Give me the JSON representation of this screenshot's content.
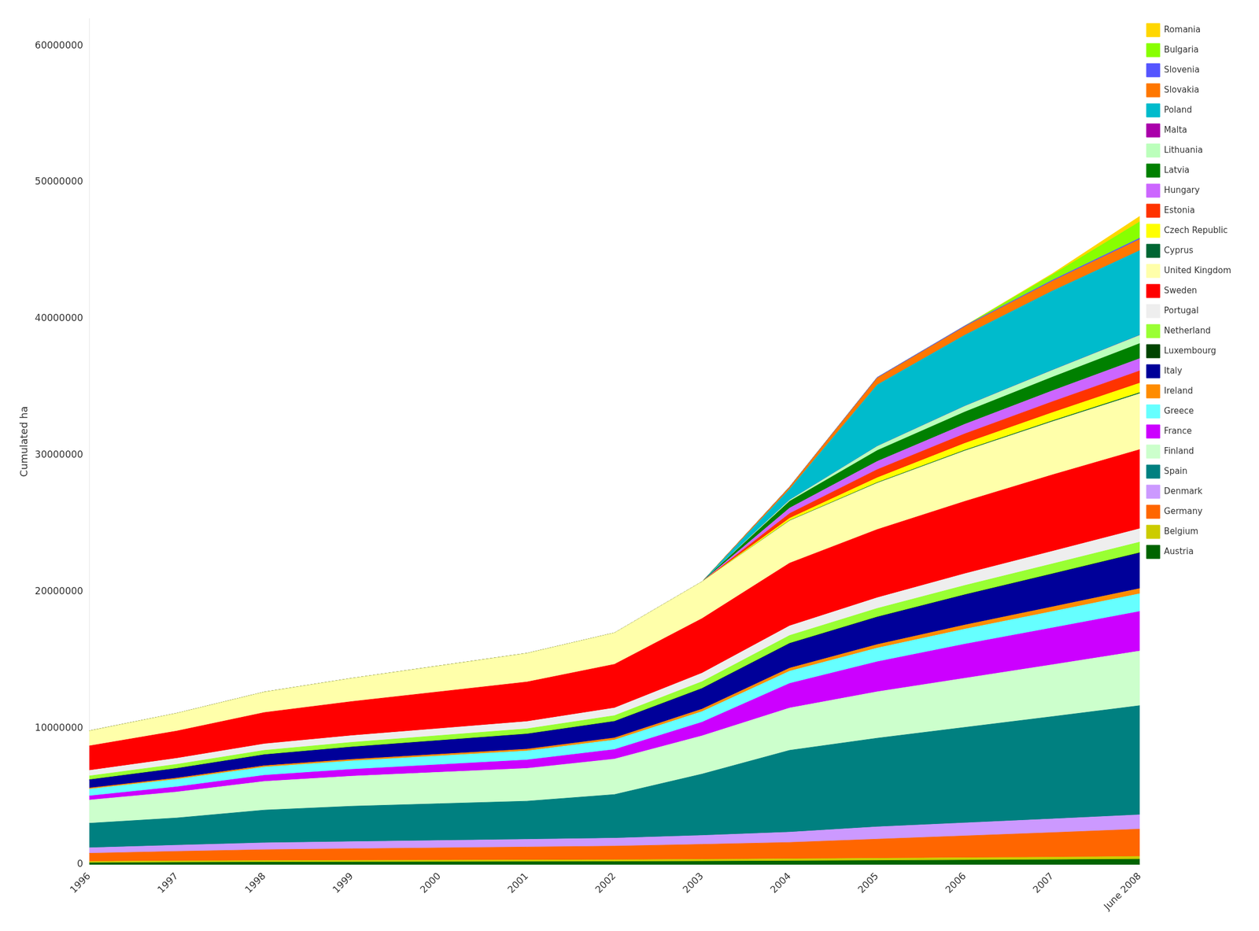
{
  "chart_data": {
    "type": "area",
    "stacked": true,
    "grid": false,
    "legend": "right",
    "ylabel": "Cumulated ha",
    "categories": [
      "1996",
      "1997",
      "1998",
      "1999",
      "2000",
      "2001",
      "2002",
      "2003",
      "2004",
      "2005",
      "2006",
      "2007",
      "June 2008"
    ],
    "ylim": [
      0,
      62000000
    ],
    "yticks": [
      0,
      10000000,
      20000000,
      30000000,
      40000000,
      50000000,
      60000000
    ],
    "series": [
      {
        "name": "Austria",
        "color": "#006400",
        "values": [
          130000,
          160000,
          180000,
          190000,
          200000,
          210000,
          220000,
          240000,
          270000,
          300000,
          330000,
          360000,
          400000
        ]
      },
      {
        "name": "Belgium",
        "color": "#CCCC00",
        "values": [
          100000,
          110000,
          115000,
          120000,
          125000,
          130000,
          135000,
          145000,
          155000,
          165000,
          175000,
          185000,
          200000
        ]
      },
      {
        "name": "Germany",
        "color": "#FF6600",
        "values": [
          600000,
          700000,
          800000,
          850000,
          900000,
          950000,
          1000000,
          1100000,
          1200000,
          1400000,
          1600000,
          1800000,
          2000000
        ]
      },
      {
        "name": "Denmark",
        "color": "#CC99FF",
        "values": [
          400000,
          450000,
          500000,
          520000,
          540000,
          560000,
          580000,
          650000,
          750000,
          900000,
          950000,
          1000000,
          1050000
        ]
      },
      {
        "name": "Spain",
        "color": "#008080",
        "values": [
          1800000,
          2000000,
          2400000,
          2600000,
          2700000,
          2800000,
          3200000,
          4500000,
          6000000,
          6500000,
          7000000,
          7500000,
          8000000
        ]
      },
      {
        "name": "Finland",
        "color": "#CCFFCC",
        "values": [
          1700000,
          1900000,
          2100000,
          2200000,
          2300000,
          2400000,
          2600000,
          2800000,
          3100000,
          3400000,
          3600000,
          3800000,
          4000000
        ]
      },
      {
        "name": "France",
        "color": "#CC00FF",
        "values": [
          300000,
          380000,
          450000,
          500000,
          560000,
          620000,
          700000,
          1000000,
          1800000,
          2200000,
          2500000,
          2700000,
          2900000
        ]
      },
      {
        "name": "Greece",
        "color": "#66FFFF",
        "values": [
          500000,
          550000,
          600000,
          620000,
          640000,
          660000,
          700000,
          780000,
          900000,
          1000000,
          1100000,
          1200000,
          1300000
        ]
      },
      {
        "name": "Ireland",
        "color": "#FF8C00",
        "values": [
          80000,
          90000,
          100000,
          110000,
          120000,
          130000,
          150000,
          180000,
          220000,
          260000,
          300000,
          340000,
          380000
        ]
      },
      {
        "name": "Italy",
        "color": "#000099",
        "values": [
          600000,
          700000,
          800000,
          900000,
          1000000,
          1100000,
          1200000,
          1500000,
          1800000,
          2000000,
          2200000,
          2400000,
          2600000
        ]
      },
      {
        "name": "Luxembourg",
        "color": "#004400",
        "values": [
          8000,
          9000,
          10000,
          11000,
          12000,
          13000,
          14000,
          15000,
          17000,
          19000,
          21000,
          23000,
          25000
        ]
      },
      {
        "name": "Netherland",
        "color": "#99FF33",
        "values": [
          280000,
          300000,
          320000,
          340000,
          360000,
          380000,
          420000,
          500000,
          580000,
          630000,
          680000,
          730000,
          780000
        ]
      },
      {
        "name": "Portugal",
        "color": "#EEEEEE",
        "values": [
          400000,
          440000,
          470000,
          490000,
          510000,
          530000,
          560000,
          620000,
          700000,
          780000,
          860000,
          920000,
          980000
        ]
      },
      {
        "name": "Sweden",
        "color": "#FF0000",
        "values": [
          1800000,
          2000000,
          2300000,
          2500000,
          2700000,
          2900000,
          3200000,
          4000000,
          4600000,
          5000000,
          5300000,
          5600000,
          5800000
        ]
      },
      {
        "name": "United Kingdom",
        "color": "#FFFFAA",
        "values": [
          1100000,
          1300000,
          1500000,
          1700000,
          1900000,
          2100000,
          2300000,
          2700000,
          3100000,
          3400000,
          3700000,
          3900000,
          4100000
        ]
      },
      {
        "name": "Cyprus",
        "color": "#006633",
        "values": [
          0,
          0,
          0,
          0,
          0,
          0,
          0,
          0,
          25000,
          40000,
          50000,
          60000,
          70000
        ]
      },
      {
        "name": "Czech Republic",
        "color": "#FFFF00",
        "values": [
          0,
          0,
          0,
          0,
          0,
          0,
          0,
          0,
          160000,
          350000,
          500000,
          600000,
          700000
        ]
      },
      {
        "name": "Estonia",
        "color": "#FF3300",
        "values": [
          0,
          0,
          0,
          0,
          0,
          0,
          0,
          0,
          350000,
          600000,
          700000,
          800000,
          900000
        ]
      },
      {
        "name": "Hungary",
        "color": "#CC66FF",
        "values": [
          0,
          0,
          0,
          0,
          0,
          0,
          0,
          0,
          400000,
          600000,
          700000,
          800000,
          900000
        ]
      },
      {
        "name": "Latvia",
        "color": "#008000",
        "values": [
          0,
          0,
          0,
          0,
          0,
          0,
          0,
          0,
          500000,
          800000,
          900000,
          1000000,
          1100000
        ]
      },
      {
        "name": "Lithuania",
        "color": "#BBFFBB",
        "values": [
          0,
          0,
          0,
          0,
          0,
          0,
          0,
          0,
          80000,
          300000,
          420000,
          500000,
          600000
        ]
      },
      {
        "name": "Malta",
        "color": "#AA00AA",
        "values": [
          0,
          0,
          0,
          0,
          0,
          0,
          0,
          0,
          3000,
          5000,
          7000,
          9000,
          12000
        ]
      },
      {
        "name": "Poland",
        "color": "#00BBCC",
        "values": [
          0,
          0,
          0,
          0,
          0,
          0,
          0,
          0,
          800000,
          4500000,
          5200000,
          5800000,
          6200000
        ]
      },
      {
        "name": "Slovakia",
        "color": "#FF7700",
        "values": [
          0,
          0,
          0,
          0,
          0,
          0,
          0,
          0,
          150000,
          500000,
          620000,
          720000,
          820000
        ]
      },
      {
        "name": "Slovenia",
        "color": "#5555FF",
        "values": [
          0,
          0,
          0,
          0,
          0,
          0,
          0,
          0,
          25000,
          50000,
          60000,
          70000,
          90000
        ]
      },
      {
        "name": "Bulgaria",
        "color": "#88FF00",
        "values": [
          0,
          0,
          0,
          0,
          0,
          0,
          0,
          0,
          0,
          0,
          0,
          400000,
          1200000
        ]
      },
      {
        "name": "Romania",
        "color": "#FFD700",
        "values": [
          0,
          0,
          0,
          0,
          0,
          0,
          0,
          0,
          0,
          0,
          0,
          80000,
          400000
        ]
      }
    ]
  }
}
